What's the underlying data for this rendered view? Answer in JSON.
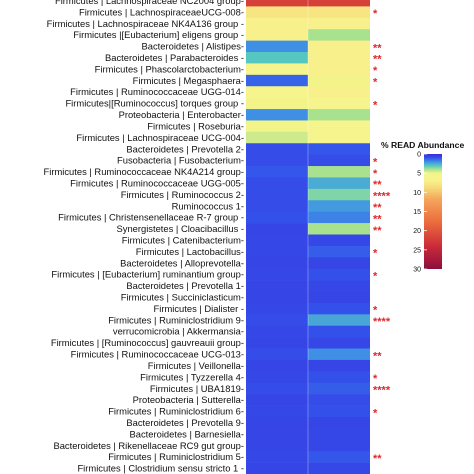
{
  "chart_data": {
    "type": "heatmap",
    "columns": 2,
    "legend": {
      "title": "% READ Abundance",
      "ticks": [
        0,
        5,
        10,
        15,
        20,
        25,
        30
      ],
      "placement": "right"
    },
    "rows": [
      {
        "label": "Firmicutes | Lachnospiraceae NC2004 group-",
        "values": [
          22,
          22
        ],
        "sig": ""
      },
      {
        "label": "Firmicutes | LachnospiraceaeUCG-008-",
        "values": [
          8,
          8
        ],
        "sig": "*"
      },
      {
        "label": "Firmicutes | Lachnospiraceae NK4A136 group -",
        "values": [
          7,
          7
        ],
        "sig": ""
      },
      {
        "label": "Firmicutes |[Eubacterium] eligens group -",
        "values": [
          7,
          4
        ],
        "sig": ""
      },
      {
        "label": "Bacteroidetes | Alistipes-",
        "values": [
          2,
          7
        ],
        "sig": "**"
      },
      {
        "label": "Bacteroidetes | Parabacteroides -",
        "values": [
          3,
          7
        ],
        "sig": "**"
      },
      {
        "label": "Firmicutes | Phascolarctobacterium-",
        "values": [
          6,
          7
        ],
        "sig": "*"
      },
      {
        "label": "Firmicutes | Megasphaera-",
        "values": [
          1.3,
          5
        ],
        "sig": "*"
      },
      {
        "label": "Firmicutes | Ruminococcaceae UGG-014-",
        "values": [
          6,
          7
        ],
        "sig": ""
      },
      {
        "label": "Firmicutes|[Ruminococcus] torques group -",
        "values": [
          5,
          6
        ],
        "sig": "*"
      },
      {
        "label": "Proteobacteria | Enterobacter-",
        "values": [
          2,
          4
        ],
        "sig": ""
      },
      {
        "label": "Firmicutes | Roseburia-",
        "values": [
          5,
          6
        ],
        "sig": ""
      },
      {
        "label": "Firmicutes | Lachnospiraceae UCG-004-",
        "values": [
          4.5,
          6
        ],
        "sig": ""
      },
      {
        "label": "Bacteroidetes | Prevotella 2-",
        "values": [
          0.9,
          1.1
        ],
        "sig": ""
      },
      {
        "label": "Fusobacteria | Fusobacterium-",
        "values": [
          0.9,
          0.9
        ],
        "sig": "*"
      },
      {
        "label": "Firmicutes | Ruminococcaceae NK4A214 group-",
        "values": [
          1.1,
          4
        ],
        "sig": "*"
      },
      {
        "label": "Firmicutes | Ruminococcaceae UGG-005-",
        "values": [
          0.9,
          2.5
        ],
        "sig": "**"
      },
      {
        "label": "Firmicutes | Ruminococcus 2-",
        "values": [
          0.9,
          3.5
        ],
        "sig": "****"
      },
      {
        "label": "Ruminococcus 1-",
        "values": [
          0.9,
          2.2
        ],
        "sig": "**"
      },
      {
        "label": "Firmicutes | Christensenellaceae R-7 group -",
        "values": [
          1,
          1.8
        ],
        "sig": "**"
      },
      {
        "label": "Synergistetes | Cloacibacillus -",
        "values": [
          0.7,
          4
        ],
        "sig": "**"
      },
      {
        "label": "Firmicutes | Catenibacterium-",
        "values": [
          0.8,
          0.8
        ],
        "sig": ""
      },
      {
        "label": "Firmicutes | Lactobacillus-",
        "values": [
          0.8,
          1.2
        ],
        "sig": "*"
      },
      {
        "label": "Bacteroidetes | Alloprevotella-",
        "values": [
          0.7,
          0.7
        ],
        "sig": ""
      },
      {
        "label": "Firmicutes | [Eubacterium] ruminantium group-",
        "values": [
          0.8,
          1.0
        ],
        "sig": "*"
      },
      {
        "label": "Bacteroidetes | Prevotella 1-",
        "values": [
          0.7,
          0.8
        ],
        "sig": ""
      },
      {
        "label": "Firmicutes | Succiniclasticum-",
        "values": [
          0.7,
          0.7
        ],
        "sig": ""
      },
      {
        "label": "Firmicutes | Dialister -",
        "values": [
          0.8,
          1.0
        ],
        "sig": "*"
      },
      {
        "label": "Firmicutes | Ruminiclostridium 9-",
        "values": [
          0.9,
          2.4
        ],
        "sig": "****"
      },
      {
        "label": "verrucomicrobia | Akkermansia-",
        "values": [
          0.8,
          1.0
        ],
        "sig": ""
      },
      {
        "label": "Firmicutes | [Ruminococcus] gauvreauii group-",
        "values": [
          0.7,
          0.8
        ],
        "sig": ""
      },
      {
        "label": "Firmicutes | Ruminococcaceae UCG-013-",
        "values": [
          0.9,
          2.0
        ],
        "sig": "**"
      },
      {
        "label": "Firmicutes | Veillonella-",
        "values": [
          0.7,
          0.7
        ],
        "sig": ""
      },
      {
        "label": "Firmicutes | Tyzzerella 4-",
        "values": [
          0.8,
          1.0
        ],
        "sig": "*"
      },
      {
        "label": "Firmicutes | UBA1819-",
        "values": [
          0.9,
          1.2
        ],
        "sig": "****"
      },
      {
        "label": "Proteobacteria | Sutterella-",
        "values": [
          0.7,
          0.9
        ],
        "sig": ""
      },
      {
        "label": "Firmicutes | Ruminiclostridium 6-",
        "values": [
          0.8,
          1.0
        ],
        "sig": "*"
      },
      {
        "label": "Bacteroidetes | Prevotella 9-",
        "values": [
          0.7,
          0.7
        ],
        "sig": ""
      },
      {
        "label": "Bacteroidetes | Barnesiella-",
        "values": [
          0.7,
          0.8
        ],
        "sig": ""
      },
      {
        "label": "Bacteroidetes | Rikenellaceae RC9 gut group-",
        "values": [
          0.7,
          0.8
        ],
        "sig": ""
      },
      {
        "label": "Firmicutes | Ruminiclostridium 5-",
        "values": [
          0.8,
          1.1
        ],
        "sig": "**"
      },
      {
        "label": "Firmicutes | Clostridium sensu stricto 1 -",
        "values": [
          0.7,
          0.8
        ],
        "sig": ""
      }
    ]
  }
}
